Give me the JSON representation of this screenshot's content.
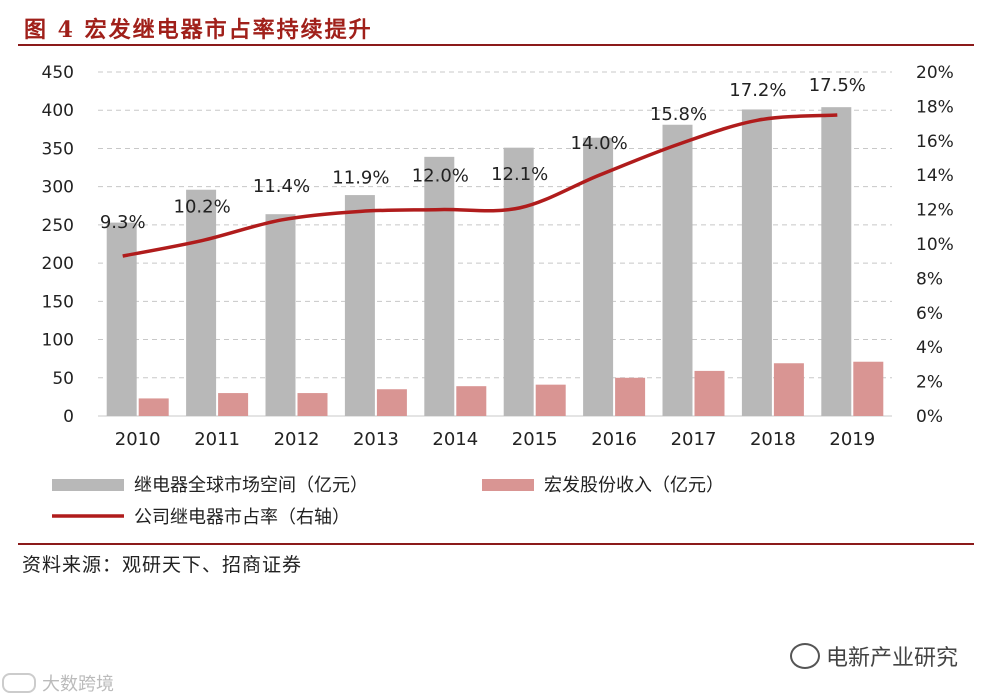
{
  "header": {
    "title": "图 4  宏发继电器市占率持续提升"
  },
  "source": "资料来源：观研天下、招商证券",
  "watermarks": {
    "right": "电新产业研究",
    "left": "大数跨境"
  },
  "colors": {
    "gray_bar": "#b8b8b8",
    "pink_bar": "#d99593",
    "line": "#b01c1c",
    "rule": "#8b1a1a"
  },
  "chart_data": {
    "type": "bar",
    "categories": [
      "2010",
      "2011",
      "2012",
      "2013",
      "2014",
      "2015",
      "2016",
      "2017",
      "2018",
      "2019"
    ],
    "series": [
      {
        "name": "继电器全球市场空间（亿元）",
        "axis": "left",
        "kind": "bar",
        "values": [
          253,
          296,
          264,
          289,
          339,
          351,
          364,
          381,
          401,
          404
        ]
      },
      {
        "name": "宏发股份收入（亿元）",
        "axis": "left",
        "kind": "bar",
        "values": [
          23,
          30,
          30,
          35,
          39,
          41,
          50,
          59,
          69,
          71
        ]
      },
      {
        "name": "公司继电器市占率（右轴）",
        "axis": "right",
        "kind": "line",
        "values": [
          9.3,
          10.2,
          11.4,
          11.9,
          12.0,
          12.1,
          14.0,
          15.8,
          17.2,
          17.5
        ],
        "labels": [
          "9.3%",
          "10.2%",
          "11.4%",
          "11.9%",
          "12.0%",
          "12.1%",
          "14.0%",
          "15.8%",
          "17.2%",
          "17.5%"
        ]
      }
    ],
    "y_left": {
      "range": [
        0,
        450
      ],
      "ticks": [
        "0",
        "50",
        "100",
        "150",
        "200",
        "250",
        "300",
        "350",
        "400",
        "450"
      ]
    },
    "y_right": {
      "range": [
        0,
        20
      ],
      "ticks": [
        "0%",
        "2%",
        "4%",
        "6%",
        "8%",
        "10%",
        "12%",
        "14%",
        "16%",
        "18%",
        "20%"
      ]
    },
    "grid": true,
    "legend": "bottom"
  }
}
